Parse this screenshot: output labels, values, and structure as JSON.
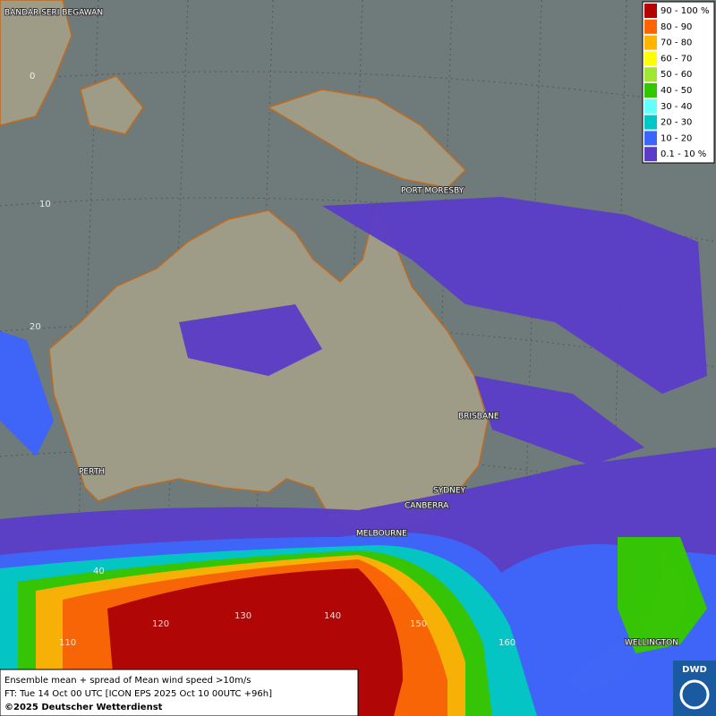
{
  "map": {
    "cities": [
      "BANDAR SERI BEGAWAN",
      "PORT MORESBY",
      "BRISBANE",
      "PERTH",
      "SYDNEY",
      "CANBERRA",
      "MELBOURNE",
      "WELLINGTON"
    ],
    "grid_labels": [
      "0",
      "10",
      "20",
      "40",
      "110",
      "120",
      "130",
      "140",
      "150",
      "160"
    ]
  },
  "legend": {
    "items": [
      {
        "label": "90 - 100 %",
        "color": "#b40000"
      },
      {
        "label": "80 - 90",
        "color": "#ff6400"
      },
      {
        "label": "70 - 80",
        "color": "#ffb400"
      },
      {
        "label": "60 - 70",
        "color": "#ffff00"
      },
      {
        "label": "50 - 60",
        "color": "#a0e632"
      },
      {
        "label": "40 - 50",
        "color": "#32c800"
      },
      {
        "label": "30 - 40",
        "color": "#64ffff"
      },
      {
        "label": "20 - 30",
        "color": "#00c8c8"
      },
      {
        "label": "10 - 20",
        "color": "#3c64ff"
      },
      {
        "label": "0.1 - 10 %",
        "color": "#5a3cc8"
      }
    ]
  },
  "footer": {
    "lines": [
      "Ensemble mean + spread of Mean wind speed >10m/s",
      "FT: Tue 14 Oct 00 UTC [ICON EPS 2025 Oct 10 00UTC +96h]",
      "©2025 Deutscher Wetterdienst"
    ]
  },
  "logo": "DWD"
}
